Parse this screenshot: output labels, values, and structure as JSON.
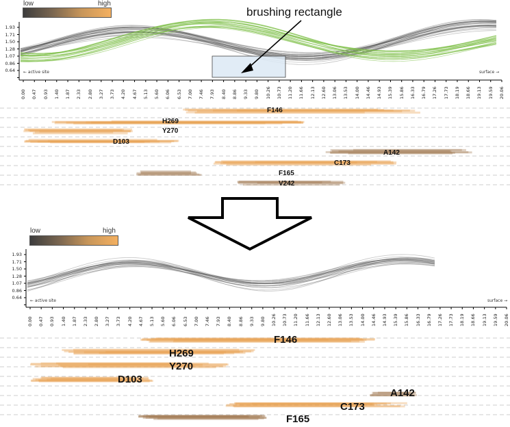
{
  "legend": {
    "low": "low",
    "high": "high"
  },
  "annotation": {
    "brushing": "brushing rectangle"
  },
  "axis": {
    "y_ticks": [
      "1.93",
      "1.71",
      "1.50",
      "1.28",
      "1.07",
      "0.86",
      "0.64"
    ],
    "x_ticks": [
      "0.00",
      "0.47",
      "0.93",
      "1.40",
      "1.87",
      "2.33",
      "2.80",
      "3.27",
      "3.73",
      "4.20",
      "4.67",
      "5.13",
      "5.60",
      "6.06",
      "6.53",
      "7.00",
      "7.46",
      "7.93",
      "8.40",
      "8.86",
      "9.33",
      "9.80",
      "10.26",
      "10.73",
      "11.20",
      "11.66",
      "12.13",
      "12.60",
      "13.06",
      "13.53",
      "14.00",
      "14.46",
      "14.93",
      "15.39",
      "15.86",
      "16.33",
      "16.79",
      "17.26",
      "17.73",
      "18.19",
      "18.66",
      "19.13",
      "19.59",
      "20.06"
    ],
    "left_note": "← active site",
    "right_note": "surface →"
  },
  "top_residues": [
    "F146",
    "H269",
    "Y270",
    "D103",
    "A142",
    "C173",
    "F165",
    "V242"
  ],
  "bottom_residues": [
    "F146",
    "H269",
    "Y270",
    "D103",
    "A142",
    "C173",
    "F165"
  ],
  "colors": {
    "gray_curve": "#555555",
    "green_curve": "#7fbf4a",
    "bar_orange": "#e8a050",
    "bar_brown": "#a07850",
    "brush_fill": "#dce9f5",
    "brush_stroke": "#444444"
  }
}
